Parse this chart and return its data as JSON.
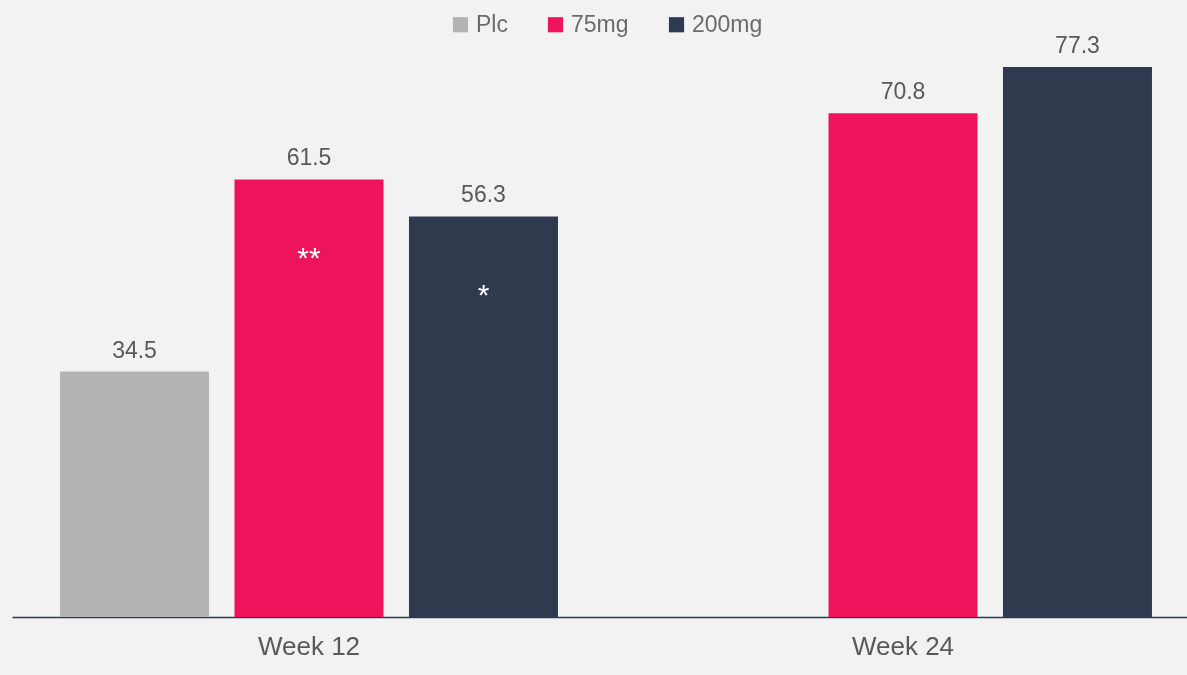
{
  "chart_data": {
    "type": "bar",
    "categories": [
      "Week 12",
      "Week 24"
    ],
    "series": [
      {
        "name": "Plc",
        "color": "#b3b3b3",
        "values": [
          34.5,
          null
        ]
      },
      {
        "name": "75mg",
        "color": "#ee145b",
        "values": [
          61.5,
          70.8
        ]
      },
      {
        "name": "200mg",
        "color": "#303a4f",
        "values": [
          56.3,
          77.3
        ]
      }
    ],
    "data_labels": true,
    "annotations": [
      "**",
      "*"
    ],
    "legend": "top"
  }
}
